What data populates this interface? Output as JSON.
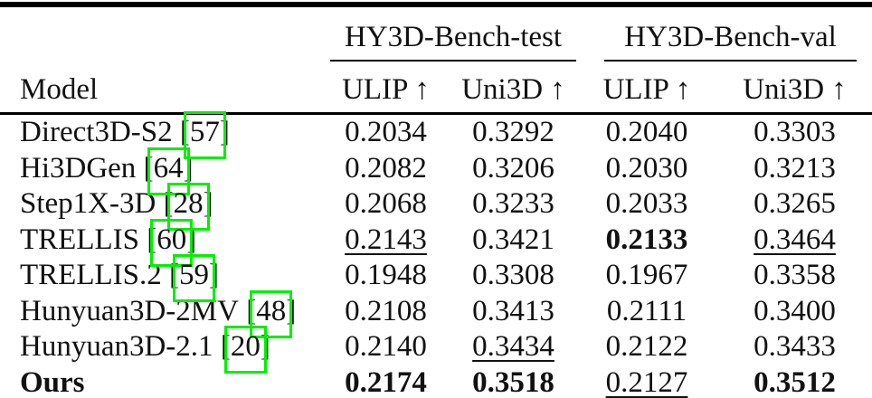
{
  "table": {
    "link_box_color": "#00f000",
    "model_header": "Model",
    "groups": [
      {
        "label": "HY3D-Bench-test"
      },
      {
        "label": "HY3D-Bench-val"
      }
    ],
    "col_headers": [
      "ULIP ↑",
      "Uni3D ↑",
      "ULIP ↑",
      "Uni3D ↑"
    ],
    "rows": [
      {
        "model": "Direct3D-S2",
        "cite": "57",
        "bold": false,
        "values": [
          {
            "t": "0.2034",
            "s": ""
          },
          {
            "t": "0.3292",
            "s": ""
          },
          {
            "t": "0.2040",
            "s": ""
          },
          {
            "t": "0.3303",
            "s": ""
          }
        ]
      },
      {
        "model": "Hi3DGen",
        "cite": "64",
        "bold": false,
        "values": [
          {
            "t": "0.2082",
            "s": ""
          },
          {
            "t": "0.3206",
            "s": ""
          },
          {
            "t": "0.2030",
            "s": ""
          },
          {
            "t": "0.3213",
            "s": ""
          }
        ]
      },
      {
        "model": "Step1X-3D",
        "cite": "28",
        "bold": false,
        "values": [
          {
            "t": "0.2068",
            "s": ""
          },
          {
            "t": "0.3233",
            "s": ""
          },
          {
            "t": "0.2033",
            "s": ""
          },
          {
            "t": "0.3265",
            "s": ""
          }
        ]
      },
      {
        "model": "TRELLIS",
        "cite": "60",
        "bold": false,
        "values": [
          {
            "t": "0.2143",
            "s": "u"
          },
          {
            "t": "0.3421",
            "s": ""
          },
          {
            "t": "0.2133",
            "s": "b"
          },
          {
            "t": "0.3464",
            "s": "u"
          }
        ]
      },
      {
        "model": "TRELLIS.2",
        "cite": "59",
        "bold": false,
        "values": [
          {
            "t": "0.1948",
            "s": ""
          },
          {
            "t": "0.3308",
            "s": ""
          },
          {
            "t": "0.1967",
            "s": ""
          },
          {
            "t": "0.3358",
            "s": ""
          }
        ]
      },
      {
        "model": "Hunyuan3D-2MV",
        "cite": "48",
        "bold": false,
        "values": [
          {
            "t": "0.2108",
            "s": ""
          },
          {
            "t": "0.3413",
            "s": ""
          },
          {
            "t": "0.2111",
            "s": ""
          },
          {
            "t": "0.3400",
            "s": ""
          }
        ]
      },
      {
        "model": "Hunyuan3D-2.1",
        "cite": "20",
        "bold": false,
        "values": [
          {
            "t": "0.2140",
            "s": ""
          },
          {
            "t": "0.3434",
            "s": "u"
          },
          {
            "t": "0.2122",
            "s": ""
          },
          {
            "t": "0.3433",
            "s": ""
          }
        ]
      },
      {
        "model": "Ours",
        "cite": null,
        "bold": true,
        "values": [
          {
            "t": "0.2174",
            "s": "b"
          },
          {
            "t": "0.3518",
            "s": "b"
          },
          {
            "t": "0.2127",
            "s": "u"
          },
          {
            "t": "0.3512",
            "s": "b"
          }
        ]
      }
    ]
  }
}
